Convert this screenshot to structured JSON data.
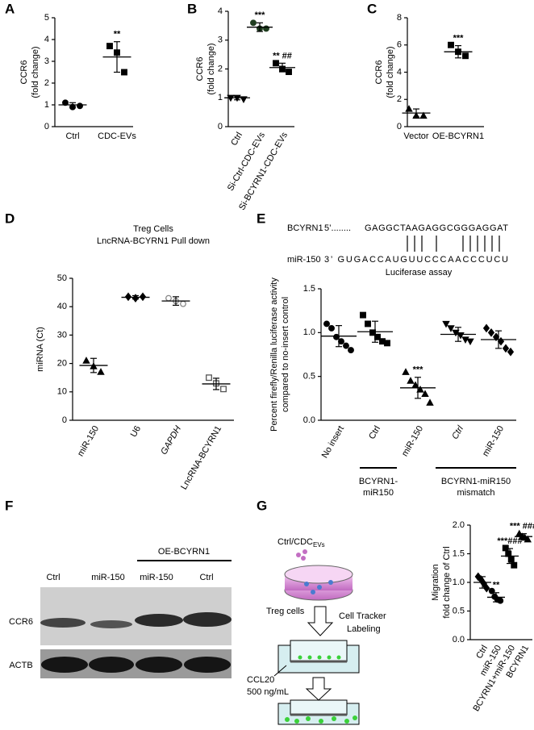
{
  "panel_labels": [
    "A",
    "B",
    "C",
    "D",
    "E",
    "F",
    "G"
  ],
  "chart_data": [
    {
      "type": "dotplot",
      "ylabel": [
        "CCR6",
        "(fold change)"
      ],
      "ylim": [
        0,
        5
      ],
      "yticks": [
        0,
        1,
        2,
        3,
        4,
        5
      ],
      "categories": [
        "Ctrl",
        "CDC-EVs"
      ],
      "points": [
        [
          1.1,
          0.9,
          0.95
        ],
        [
          3.7,
          3.4,
          2.5
        ]
      ],
      "mean": [
        1.0,
        3.2
      ],
      "sd": [
        0.1,
        0.7
      ],
      "annotations": [
        null,
        "**"
      ],
      "markers": [
        {
          "shape": "circle",
          "color": "#000000",
          "filled": true
        },
        {
          "shape": "square",
          "color": "#000000",
          "filled": true
        }
      ]
    },
    {
      "type": "dotplot",
      "ylabel": [
        "CCR6",
        "(fold change)"
      ],
      "ylim": [
        0,
        4
      ],
      "yticks": [
        0,
        1,
        2,
        3,
        4
      ],
      "categories": [
        "Ctrl",
        "Si-Ctrl-CDC-EVs",
        "Si-BCYRN1-CDC-EVs"
      ],
      "xtick_rotation": 60,
      "points": [
        [
          1.0,
          1.0,
          0.95
        ],
        [
          3.6,
          3.4,
          3.4
        ],
        [
          2.2,
          2.0,
          1.9
        ]
      ],
      "mean": [
        1.0,
        3.45,
        2.05
      ],
      "sd": [
        0.07,
        0.15,
        0.15
      ],
      "annotations": [
        null,
        "***",
        "** ##"
      ],
      "markers": [
        {
          "shape": "triangle-down",
          "color": "#000000",
          "filled": true
        },
        {
          "shape": "circle",
          "color": "#1f3d1f",
          "filled": true
        },
        {
          "shape": "square",
          "color": "#000000",
          "filled": true
        }
      ]
    },
    {
      "type": "dotplot",
      "ylabel": [
        "CCR6",
        "(fold change)"
      ],
      "ylim": [
        0,
        8
      ],
      "yticks": [
        0,
        2,
        4,
        6,
        8
      ],
      "categories": [
        "Vector",
        "OE-BCYRN1"
      ],
      "points": [
        [
          1.3,
          0.8,
          0.8
        ],
        [
          6.0,
          5.5,
          5.2
        ]
      ],
      "mean": [
        1.0,
        5.5
      ],
      "sd": [
        0.3,
        0.45
      ],
      "annotations": [
        null,
        "***"
      ],
      "markers": [
        {
          "shape": "triangle",
          "color": "#000000",
          "filled": true
        },
        {
          "shape": "square",
          "color": "#000000",
          "filled": true
        }
      ]
    },
    {
      "type": "dotplot",
      "title": [
        "Treg Cells",
        "LncRNA-BCYRN1 Pull down"
      ],
      "ylabel": [
        "miRNA (Ct)"
      ],
      "ylim": [
        0,
        50
      ],
      "yticks": [
        0,
        10,
        20,
        30,
        40,
        50
      ],
      "categories": [
        "miR-150",
        "U6",
        "GAPDH",
        "LncRNA-BCYRN1"
      ],
      "xtick_rotation": 60,
      "points": [
        [
          21,
          19,
          17
        ],
        [
          43.5,
          43,
          43.5
        ],
        [
          43,
          42,
          41
        ],
        [
          15,
          13,
          11
        ]
      ],
      "mean": [
        19.3,
        43.3,
        42,
        12.8
      ],
      "sd": [
        2.5,
        0.6,
        1.5,
        2
      ],
      "markers": [
        {
          "shape": "triangle",
          "color": "#000000",
          "filled": true
        },
        {
          "shape": "diamond",
          "color": "#000000",
          "filled": true
        },
        {
          "shape": "circle",
          "color": "#888888",
          "filled": false
        },
        {
          "shape": "square",
          "color": "#555555",
          "filled": false
        }
      ]
    },
    {
      "type": "dotplot",
      "title": [
        "Luciferase assay"
      ],
      "ylabel": [
        "Percent firefly/Renilla luciferase activity",
        "compared to no-insert control"
      ],
      "ylim": [
        0,
        1.5
      ],
      "yticks": [
        {
          "value": 0,
          "label": "0.0"
        },
        0.5,
        {
          "value": 1,
          "label": "1.0"
        },
        1.5
      ],
      "categories": [
        "No insert",
        "Ctrl",
        "miR-150",
        "Ctrl",
        "miR-150"
      ],
      "xtick_rotation": 60,
      "groups": [
        [
          "BCYRN1-",
          "miR150"
        ],
        [
          "BCYRN1-miR150",
          "mismatch"
        ]
      ],
      "points": [
        [
          1.1,
          1.05,
          0.95,
          0.9,
          0.85,
          0.8
        ],
        [
          1.2,
          1.1,
          1.0,
          0.95,
          0.9,
          0.88
        ],
        [
          0.55,
          0.45,
          0.4,
          0.35,
          0.3,
          0.2
        ],
        [
          1.1,
          1.05,
          1.0,
          0.97,
          0.92,
          0.9
        ],
        [
          1.05,
          1.0,
          0.95,
          0.9,
          0.82,
          0.78
        ]
      ],
      "mean": [
        0.96,
        1.01,
        0.37,
        0.98,
        0.92
      ],
      "sd": [
        0.12,
        0.12,
        0.12,
        0.08,
        0.1
      ],
      "annotations": [
        null,
        null,
        "***",
        null,
        null
      ],
      "markers": [
        {
          "shape": "circle",
          "color": "#000000",
          "filled": true
        },
        {
          "shape": "square",
          "color": "#000000",
          "filled": true
        },
        {
          "shape": "triangle",
          "color": "#000000",
          "filled": true
        },
        {
          "shape": "triangle-down",
          "color": "#000000",
          "filled": true
        },
        {
          "shape": "diamond",
          "color": "#000000",
          "filled": true
        }
      ]
    },
    {
      "type": "dotplot",
      "ylabel": [
        "Migration",
        "fold change of Ctrl"
      ],
      "ylim": [
        0,
        2
      ],
      "yticks": [
        {
          "value": 0,
          "label": "0.0"
        },
        0.5,
        {
          "value": 1,
          "label": "1.0"
        },
        1.5,
        {
          "value": 2,
          "label": "2.0"
        }
      ],
      "categories": [
        "Ctrl",
        "miR-150",
        "BCYRN1+miR-150",
        "BCYRN1"
      ],
      "xtick_rotation": 60,
      "points": [
        [
          1.1,
          1.05,
          0.98,
          0.9
        ],
        [
          0.85,
          0.75,
          0.7,
          0.68
        ],
        [
          1.6,
          1.5,
          1.4,
          1.3
        ],
        [
          1.85,
          1.8,
          1.78,
          1.75
        ]
      ],
      "mean": [
        1.0,
        0.74,
        1.46,
        1.8
      ],
      "sd": [
        0.1,
        0.08,
        0.13,
        0.05
      ],
      "annotations": [
        null,
        "**",
        "***###",
        "*** ###"
      ],
      "markers": [
        {
          "shape": "diamond",
          "color": "#000000",
          "filled": true
        },
        {
          "shape": "circle",
          "color": "#000000",
          "filled": true
        },
        {
          "shape": "square",
          "color": "#000000",
          "filled": true
        },
        {
          "shape": "triangle",
          "color": "#000000",
          "filled": true
        }
      ]
    }
  ],
  "alignment": {
    "target_name": "BCYRN1",
    "target_end": "5’........",
    "target_seq": "GAGGCTAAGAGGCGGGAGGAT",
    "mirna_name": "miR-150",
    "mirna_seq": "3’ GUGACCAUGUUCCCAACCCUCU"
  },
  "blot": {
    "group": "OE-BCYRN1",
    "lanes": [
      "Ctrl",
      "miR-150",
      "miR-150",
      "Ctrl"
    ],
    "rows": [
      "CCR6",
      "ACTB"
    ]
  },
  "diagram": {
    "treatment": "Ctrl/CDC",
    "treatment_sub": "EVs",
    "cells": "Treg cells",
    "step": [
      "Cell Tracker",
      "Labeling"
    ],
    "chemokine": [
      "CCL20",
      "500 ng/mL"
    ]
  }
}
